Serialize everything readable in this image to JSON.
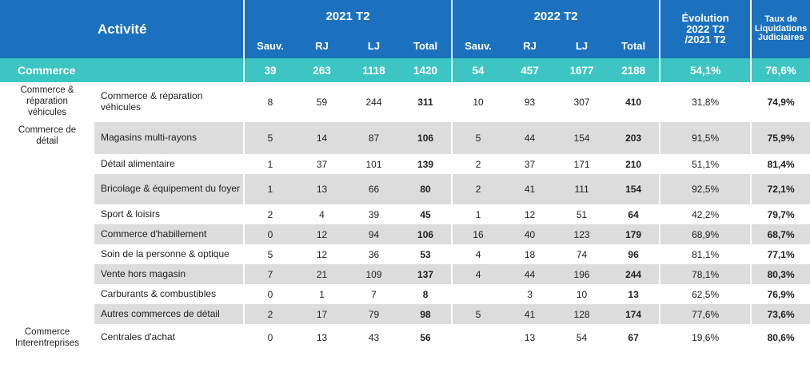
{
  "header": {
    "activite": "Activité",
    "period_2021": "2021 T2",
    "period_2022": "2022 T2",
    "evolution": [
      "Évolution",
      "2022 T2",
      "/2021 T2"
    ],
    "taux": [
      "Taux de",
      "Liquidations",
      "Judiciaires"
    ],
    "cols": [
      "Sauv.",
      "RJ",
      "LJ",
      "Total"
    ]
  },
  "summary": {
    "label": "Commerce",
    "values": [
      "39",
      "263",
      "1118",
      "1420",
      "54",
      "457",
      "1677",
      "2188",
      "54,1%",
      "76,6%"
    ]
  },
  "categories": [
    [
      "Commerce &",
      "réparation",
      "véhicules"
    ],
    [
      "Commerce de",
      "détail"
    ],
    [
      "Commerce",
      "Interentreprises"
    ]
  ],
  "rows": [
    {
      "sub": "Commerce & réparation véhicules",
      "values": [
        "8",
        "59",
        "244",
        "311",
        "10",
        "93",
        "307",
        "410",
        "31,8%",
        "74,9%"
      ]
    },
    {
      "sub": "Magasins multi-rayons",
      "values": [
        "5",
        "14",
        "87",
        "106",
        "5",
        "44",
        "154",
        "203",
        "91,5%",
        "75,9%"
      ]
    },
    {
      "sub": "Détail alimentaire",
      "values": [
        "1",
        "37",
        "101",
        "139",
        "2",
        "37",
        "171",
        "210",
        "51,1%",
        "81,4%"
      ]
    },
    {
      "sub": "Bricolage & équipement du foyer",
      "values": [
        "1",
        "13",
        "66",
        "80",
        "2",
        "41",
        "111",
        "154",
        "92,5%",
        "72,1%"
      ]
    },
    {
      "sub": "Sport & loisirs",
      "values": [
        "2",
        "4",
        "39",
        "45",
        "1",
        "12",
        "51",
        "64",
        "42,2%",
        "79,7%"
      ]
    },
    {
      "sub": "Commerce d'habillement",
      "values": [
        "0",
        "12",
        "94",
        "106",
        "16",
        "40",
        "123",
        "179",
        "68,9%",
        "68,7%"
      ]
    },
    {
      "sub": "Soin de la personne & optique",
      "values": [
        "5",
        "12",
        "36",
        "53",
        "4",
        "18",
        "74",
        "96",
        "81,1%",
        "77,1%"
      ]
    },
    {
      "sub": "Vente hors magasin",
      "values": [
        "7",
        "21",
        "109",
        "137",
        "4",
        "44",
        "196",
        "244",
        "78,1%",
        "80,3%"
      ]
    },
    {
      "sub": "Carburants & combustibles",
      "values": [
        "0",
        "1",
        "7",
        "8",
        "",
        "3",
        "10",
        "13",
        "62,5%",
        "76,9%"
      ]
    },
    {
      "sub": "Autres commerces de détail",
      "values": [
        "2",
        "17",
        "79",
        "98",
        "5",
        "41",
        "128",
        "174",
        "77,6%",
        "73,6%"
      ]
    },
    {
      "sub": "Centrales d'achat",
      "values": [
        "0",
        "13",
        "43",
        "56",
        "",
        "13",
        "54",
        "67",
        "19,6%",
        "80,6%"
      ]
    }
  ]
}
